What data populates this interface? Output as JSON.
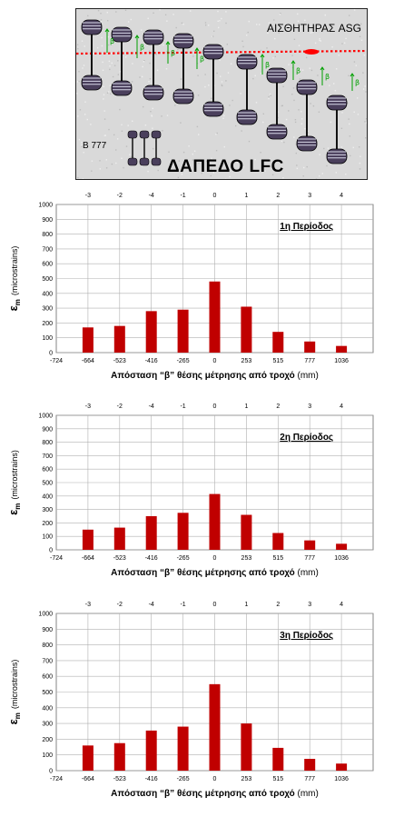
{
  "diagram": {
    "sensor_label": "ΑΙΣΘΗΤΗΡΑΣ ASG",
    "truck_label": "B 777",
    "floor_label": "ΔΑΠΕΔΟ LFC",
    "beta_symbol": "β",
    "colors": {
      "sensor_line": "#ff0000",
      "arrows": "#00a000",
      "wheels": "#4a3f5c"
    }
  },
  "chart_data": [
    {
      "type": "bar",
      "title": "1η Περίοδος",
      "ylabel_symbol": "ε",
      "ylabel_sub": "m",
      "ylabel_unit": "(microstrains)",
      "xlabel_main": "Απόσταση “β” θέσης μέτρησης από τροχό",
      "xlabel_unit": "(mm)",
      "x_ticks": [
        "-724",
        "-664",
        "-523",
        "-416",
        "-265",
        "0",
        "253",
        "515",
        "777",
        "1036"
      ],
      "top_ticks": [
        "-3",
        "-2",
        "-4",
        "-1",
        "0",
        "1",
        "2",
        "3",
        "4"
      ],
      "categories": [
        "-664",
        "-523",
        "-416",
        "-265",
        "0",
        "253",
        "515",
        "777",
        "1036"
      ],
      "values": [
        170,
        180,
        280,
        290,
        480,
        310,
        140,
        75,
        45
      ],
      "ylim": [
        0,
        1000
      ],
      "yticks": [
        0,
        100,
        200,
        300,
        400,
        500,
        600,
        700,
        800,
        900,
        1000
      ],
      "grid": true,
      "bar_color": "#c00000"
    },
    {
      "type": "bar",
      "title": "2η Περίοδος",
      "ylabel_symbol": "ε",
      "ylabel_sub": "m",
      "ylabel_unit": "(microstrains)",
      "xlabel_main": "Απόσταση “β” θέσης μέτρησης από τροχό",
      "xlabel_unit": "(mm)",
      "x_ticks": [
        "-724",
        "-664",
        "-523",
        "-416",
        "-265",
        "0",
        "253",
        "515",
        "777",
        "1036"
      ],
      "top_ticks": [
        "-3",
        "-2",
        "-4",
        "-1",
        "0",
        "1",
        "2",
        "3",
        "4"
      ],
      "categories": [
        "-664",
        "-523",
        "-416",
        "-265",
        "0",
        "253",
        "515",
        "777",
        "1036"
      ],
      "values": [
        150,
        165,
        250,
        275,
        415,
        260,
        125,
        70,
        45
      ],
      "ylim": [
        0,
        1000
      ],
      "yticks": [
        0,
        100,
        200,
        300,
        400,
        500,
        600,
        700,
        800,
        900,
        1000
      ],
      "grid": true,
      "bar_color": "#c00000"
    },
    {
      "type": "bar",
      "title": "3η Περίοδος",
      "ylabel_symbol": "ε",
      "ylabel_sub": "m",
      "ylabel_unit": "(microstrains)",
      "xlabel_main": "Απόσταση “β” θέσης μέτρησης από τροχό",
      "xlabel_unit": "(mm)",
      "x_ticks": [
        "-724",
        "-664",
        "-523",
        "-416",
        "-265",
        "0",
        "253",
        "515",
        "777",
        "1036"
      ],
      "top_ticks": [
        "-3",
        "-2",
        "-4",
        "-1",
        "0",
        "1",
        "2",
        "3",
        "4"
      ],
      "categories": [
        "-664",
        "-523",
        "-416",
        "-265",
        "0",
        "253",
        "515",
        "777",
        "1036"
      ],
      "values": [
        160,
        175,
        255,
        280,
        550,
        300,
        145,
        75,
        45
      ],
      "ylim": [
        0,
        1000
      ],
      "yticks": [
        0,
        100,
        200,
        300,
        400,
        500,
        600,
        700,
        800,
        900,
        1000
      ],
      "grid": true,
      "bar_color": "#c00000"
    }
  ]
}
